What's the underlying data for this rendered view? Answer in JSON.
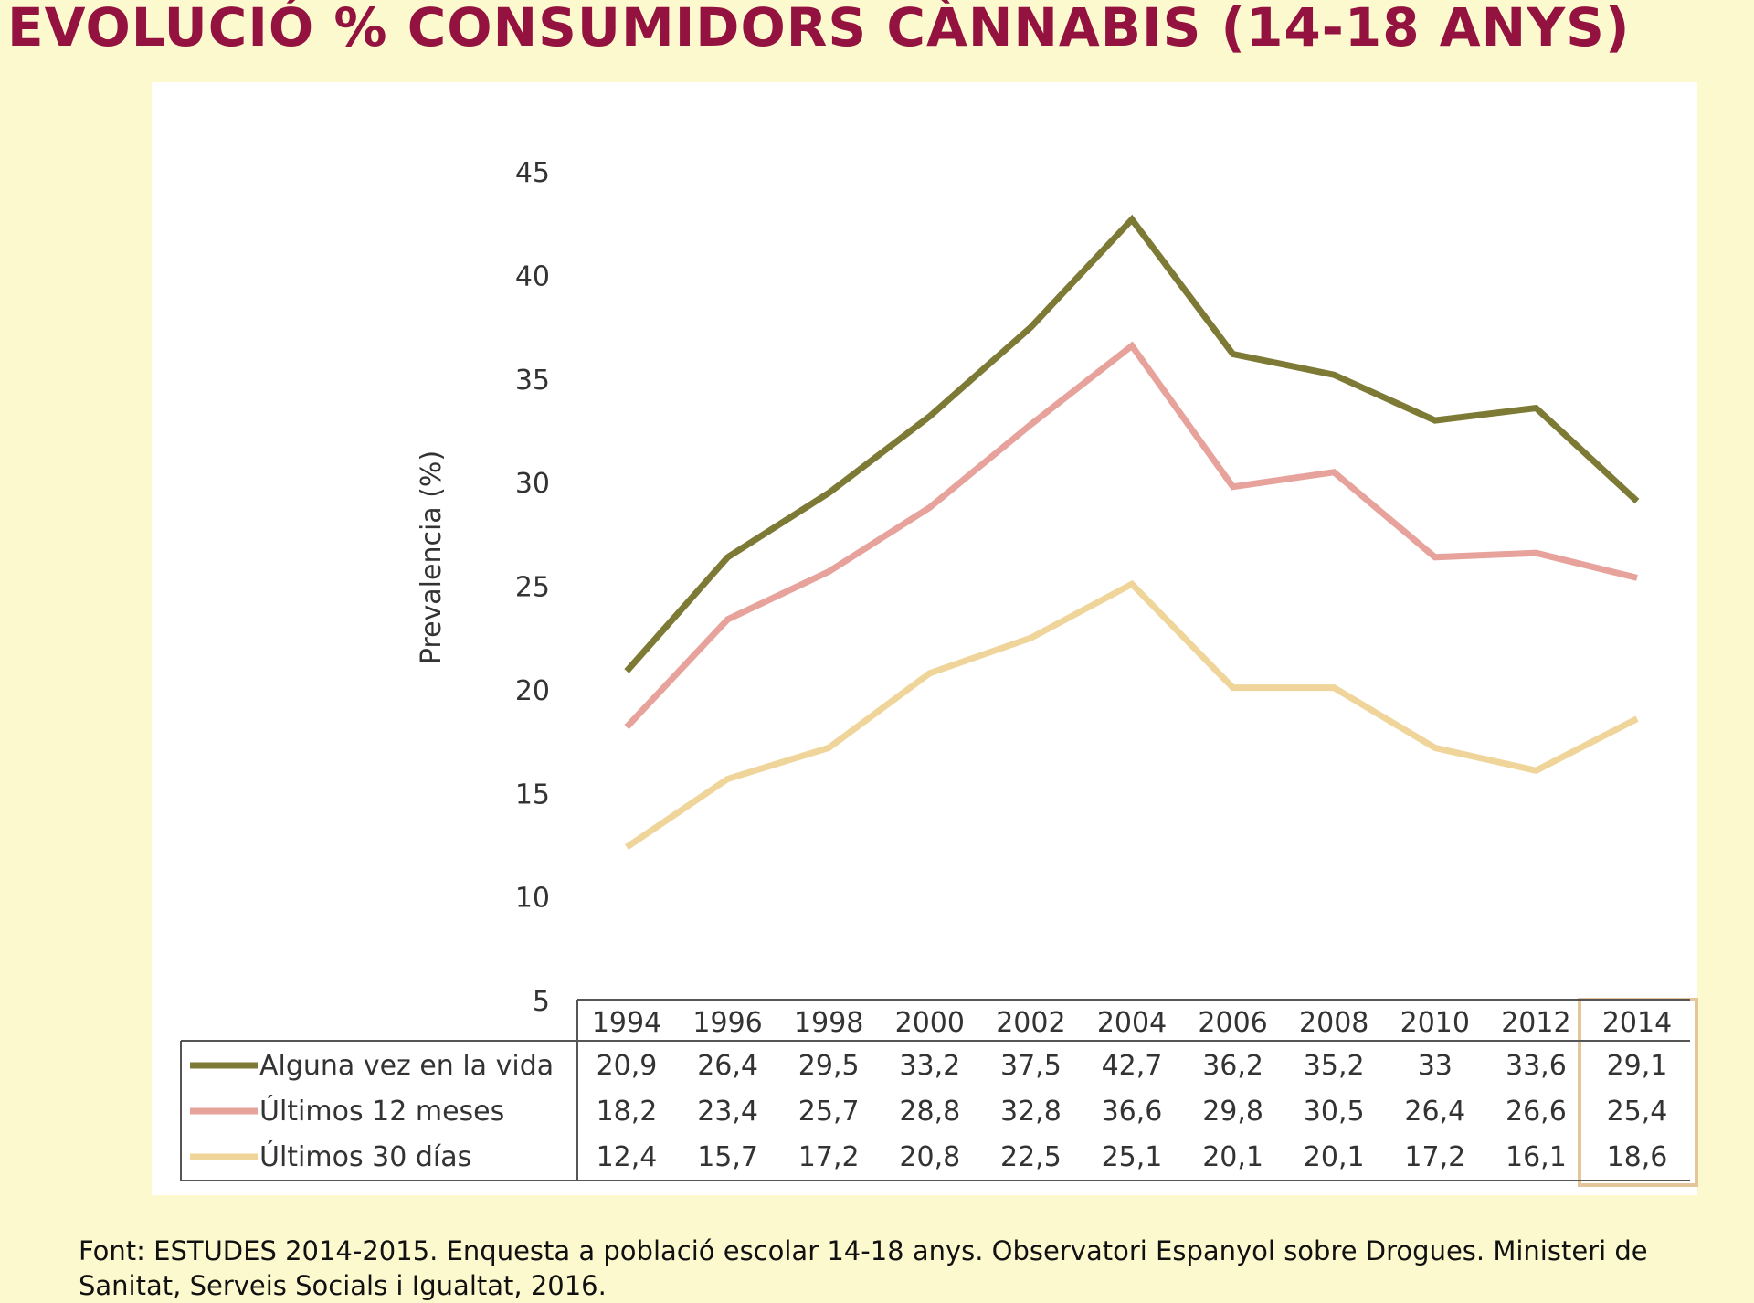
{
  "title": "EVOLUCIÓ % CONSUMIDORS CÀNNABIS (14-18 ANYS)",
  "source": "Font: ESTUDES 2014-2015. Enquesta a població escolar 14-18 anys. Observatori Espanyol sobre Drogues. Ministeri de Sanitat, Serveis Socials i Igualtat, 2016.",
  "colors": {
    "title": "#93123f",
    "background": "#fdf9cf",
    "panel": "#ffffff",
    "highlight": "#e3c79a"
  },
  "chart_data": {
    "type": "line",
    "ylabel": "Prevalencia (%)",
    "xlabel": "",
    "ylim": [
      5,
      45
    ],
    "yticks": [
      5,
      10,
      15,
      20,
      25,
      30,
      35,
      40,
      45
    ],
    "grid": false,
    "legend": "table-below",
    "x": [
      "1994",
      "1996",
      "1998",
      "2000",
      "2002",
      "2004",
      "2006",
      "2008",
      "2010",
      "2012",
      "2014"
    ],
    "highlighted_category": "2014",
    "series": [
      {
        "name": "Alguna vez en la vida",
        "color": "#7d7a35",
        "values": [
          20.9,
          26.4,
          29.5,
          33.2,
          37.5,
          42.7,
          36.2,
          35.2,
          33,
          33.6,
          29.1
        ],
        "labels": [
          "20,9",
          "26,4",
          "29,5",
          "33,2",
          "37,5",
          "42,7",
          "36,2",
          "35,2",
          "33",
          "33,6",
          "29,1"
        ]
      },
      {
        "name": "Últimos 12 meses",
        "color": "#e6a29b",
        "values": [
          18.2,
          23.4,
          25.7,
          28.8,
          32.8,
          36.6,
          29.8,
          30.5,
          26.4,
          26.6,
          25.4
        ],
        "labels": [
          "18,2",
          "23,4",
          "25,7",
          "28,8",
          "32,8",
          "36,6",
          "29,8",
          "30,5",
          "26,4",
          "26,6",
          "25,4"
        ]
      },
      {
        "name": "Últimos 30 días",
        "color": "#f0d59b",
        "values": [
          12.4,
          15.7,
          17.2,
          20.8,
          22.5,
          25.1,
          20.1,
          20.1,
          17.2,
          16.1,
          18.6
        ],
        "labels": [
          "12,4",
          "15,7",
          "17,2",
          "20,8",
          "22,5",
          "25,1",
          "20,1",
          "20,1",
          "17,2",
          "16,1",
          "18,6"
        ]
      }
    ]
  }
}
